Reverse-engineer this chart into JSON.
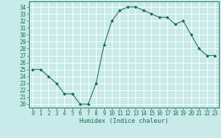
{
  "x": [
    0,
    1,
    2,
    3,
    4,
    5,
    6,
    7,
    8,
    9,
    10,
    11,
    12,
    13,
    14,
    15,
    16,
    17,
    18,
    19,
    20,
    21,
    22,
    23
  ],
  "y": [
    25.0,
    25.0,
    24.0,
    23.0,
    21.5,
    21.5,
    20.0,
    20.0,
    23.0,
    28.5,
    32.0,
    33.5,
    34.0,
    34.0,
    33.5,
    33.0,
    32.5,
    32.5,
    31.5,
    32.0,
    30.0,
    28.0,
    27.0,
    27.0
  ],
  "line_color": "#1a6b5a",
  "marker": "D",
  "marker_size": 2.0,
  "bg_color": "#c8eae8",
  "grid_color": "#ffffff",
  "xlabel": "Humidex (Indice chaleur)",
  "ylabel_ticks": [
    20,
    21,
    22,
    23,
    24,
    25,
    26,
    27,
    28,
    29,
    30,
    31,
    32,
    33,
    34
  ],
  "ylim": [
    19.5,
    34.8
  ],
  "xlim": [
    -0.5,
    23.5
  ],
  "tick_fontsize": 5.5,
  "xlabel_fontsize": 6.5
}
